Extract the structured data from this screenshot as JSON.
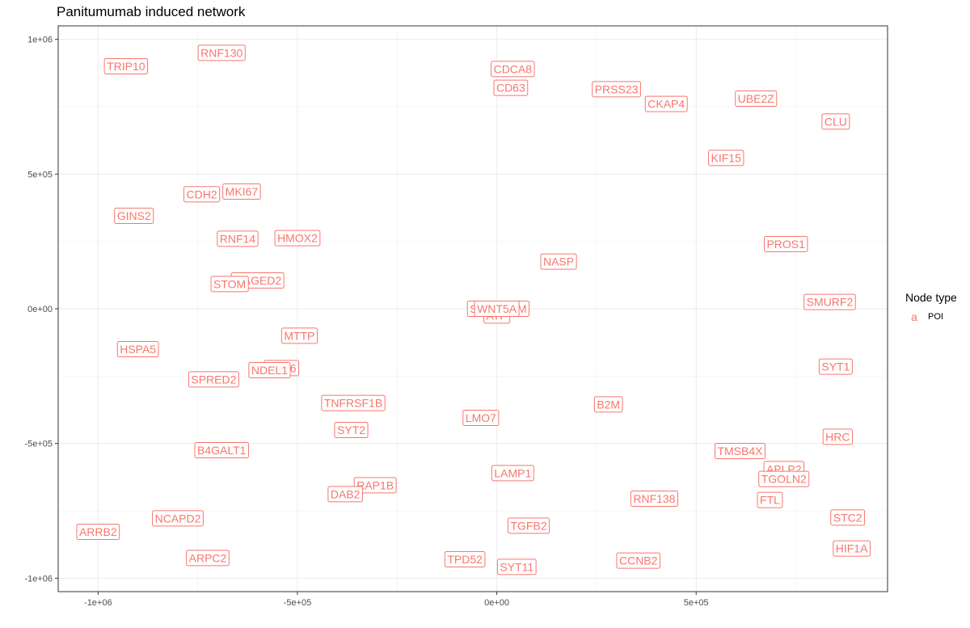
{
  "chart_data": {
    "type": "scatter",
    "title": "Panitumumab induced network",
    "xlabel": "",
    "ylabel": "",
    "xlim": [
      -1100000,
      980000
    ],
    "ylim": [
      -1050000,
      1050000
    ],
    "x_ticks": [
      -1000000,
      -500000,
      0,
      500000
    ],
    "x_tick_labels": [
      "-1e+06",
      "-5e+05",
      "0e+00",
      "5e+05"
    ],
    "y_ticks": [
      -1000000,
      -500000,
      0,
      500000,
      1000000
    ],
    "y_tick_labels": [
      "-1e+06",
      "-5e+05",
      "0e+00",
      "5e+05",
      "1e+06"
    ],
    "grid": true,
    "legend": {
      "title": "Node type",
      "position": "right",
      "entries": [
        {
          "key": "a",
          "label": "POI",
          "color": "#F8766D"
        }
      ]
    },
    "label_color": "#F8766D",
    "points": [
      {
        "label": "TRIP10",
        "x": -930000,
        "y": 900000
      },
      {
        "label": "RNF130",
        "x": -690000,
        "y": 950000
      },
      {
        "label": "CDCA8",
        "x": 40000,
        "y": 890000
      },
      {
        "label": "CD63",
        "x": 35000,
        "y": 820000
      },
      {
        "label": "PRSS23",
        "x": 300000,
        "y": 815000
      },
      {
        "label": "CKAP4",
        "x": 425000,
        "y": 760000
      },
      {
        "label": "UBE2Z",
        "x": 650000,
        "y": 780000
      },
      {
        "label": "CLU",
        "x": 850000,
        "y": 695000
      },
      {
        "label": "KIF15",
        "x": 575000,
        "y": 560000
      },
      {
        "label": "CDH2",
        "x": -740000,
        "y": 425000
      },
      {
        "label": "MKI67",
        "x": -640000,
        "y": 435000
      },
      {
        "label": "GINS2",
        "x": -910000,
        "y": 345000
      },
      {
        "label": "RNF14",
        "x": -650000,
        "y": 260000
      },
      {
        "label": "HMOX2",
        "x": -500000,
        "y": 262000
      },
      {
        "label": "PROS1",
        "x": 725000,
        "y": 240000
      },
      {
        "label": "NASP",
        "x": 155000,
        "y": 175000
      },
      {
        "label": "MAGED2",
        "x": -600000,
        "y": 105000
      },
      {
        "label": "STOM",
        "x": -670000,
        "y": 92000
      },
      {
        "label": "SMURF2",
        "x": 835000,
        "y": 25000
      },
      {
        "label": "SLC",
        "x": -40000,
        "y": 0
      },
      {
        "label": "TPM",
        "x": 45000,
        "y": 0
      },
      {
        "label": "ATP",
        "x": 0,
        "y": -25000
      },
      {
        "label": "WNT5A",
        "x": 0,
        "y": 0
      },
      {
        "label": "MTTP",
        "x": -495000,
        "y": -100000
      },
      {
        "label": "HSPA5",
        "x": -900000,
        "y": -150000
      },
      {
        "label": "SYT1",
        "x": 850000,
        "y": -215000
      },
      {
        "label": "RAB6",
        "x": -540000,
        "y": -220000
      },
      {
        "label": "NDEL1",
        "x": -570000,
        "y": -228000
      },
      {
        "label": "SPRED2",
        "x": -710000,
        "y": -262000
      },
      {
        "label": "TNFRSF1B",
        "x": -360000,
        "y": -350000
      },
      {
        "label": "B2M",
        "x": 280000,
        "y": -355000
      },
      {
        "label": "LMO7",
        "x": -40000,
        "y": -405000
      },
      {
        "label": "SYT2",
        "x": -365000,
        "y": -450000
      },
      {
        "label": "HRC",
        "x": 855000,
        "y": -475000
      },
      {
        "label": "B4GALT1",
        "x": -690000,
        "y": -525000
      },
      {
        "label": "TMSB4X",
        "x": 610000,
        "y": -528000
      },
      {
        "label": "APLP2",
        "x": 720000,
        "y": -595000
      },
      {
        "label": "TGOLN2",
        "x": 720000,
        "y": -632000
      },
      {
        "label": "LAMP1",
        "x": 40000,
        "y": -610000
      },
      {
        "label": "RAP1B",
        "x": -305000,
        "y": -655000
      },
      {
        "label": "DAB2",
        "x": -380000,
        "y": -688000
      },
      {
        "label": "RNF138",
        "x": 395000,
        "y": -705000
      },
      {
        "label": "FTL",
        "x": 685000,
        "y": -710000
      },
      {
        "label": "STC2",
        "x": 880000,
        "y": -775000
      },
      {
        "label": "NCAPD2",
        "x": -800000,
        "y": -778000
      },
      {
        "label": "TGFB2",
        "x": 80000,
        "y": -805000
      },
      {
        "label": "ARRB2",
        "x": -1000000,
        "y": -828000
      },
      {
        "label": "HIF1A",
        "x": 890000,
        "y": -890000
      },
      {
        "label": "ARPC2",
        "x": -725000,
        "y": -925000
      },
      {
        "label": "TPD52",
        "x": -80000,
        "y": -930000
      },
      {
        "label": "CCNB2",
        "x": 355000,
        "y": -935000
      },
      {
        "label": "SYT11",
        "x": 50000,
        "y": -958000
      }
    ]
  }
}
